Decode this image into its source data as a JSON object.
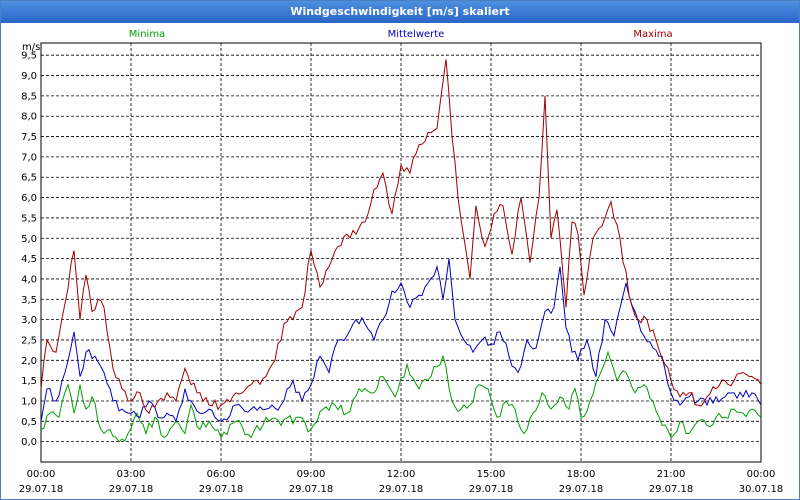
{
  "window": {
    "title": "Windgeschwindigkeit [m/s] skaliert"
  },
  "chart_data": {
    "type": "line",
    "title": "Windgeschwindigkeit [m/s] skaliert",
    "ylabel": "m/s",
    "ylim": [
      -0.5,
      9.8
    ],
    "y_ticks": [
      "0,0",
      "0,5",
      "1,0",
      "1,5",
      "2,0",
      "2,5",
      "3,0",
      "3,5",
      "4,0",
      "4,5",
      "5,0",
      "5,5",
      "6,0",
      "6,5",
      "7,0",
      "7,5",
      "8,0",
      "8,5",
      "9,0",
      "9,5"
    ],
    "x_ticks": [
      {
        "time": "00:00",
        "date": "29.07.18"
      },
      {
        "time": "03:00",
        "date": "29.07.18"
      },
      {
        "time": "06:00",
        "date": "29.07.18"
      },
      {
        "time": "09:00",
        "date": "29.07.18"
      },
      {
        "time": "12:00",
        "date": "29.07.18"
      },
      {
        "time": "15:00",
        "date": "29.07.18"
      },
      {
        "time": "18:00",
        "date": "29.07.18"
      },
      {
        "time": "21:00",
        "date": "29.07.18"
      },
      {
        "time": "00:00",
        "date": "30.07.18"
      }
    ],
    "x_start_hour": 0,
    "x_end_hour": 24,
    "grid": true,
    "series": [
      {
        "name": "Minima",
        "color": "#00a000",
        "keys": [
          [
            0,
            0.3
          ],
          [
            0.3,
            0.7
          ],
          [
            0.6,
            0.6
          ],
          [
            0.9,
            1.4
          ],
          [
            1.1,
            0.7
          ],
          [
            1.3,
            1.4
          ],
          [
            1.5,
            0.8
          ],
          [
            1.7,
            1.1
          ],
          [
            2.0,
            0.3
          ],
          [
            2.3,
            0.3
          ],
          [
            2.6,
            0.0
          ],
          [
            2.9,
            0.2
          ],
          [
            3.2,
            0.7
          ],
          [
            3.5,
            0.2
          ],
          [
            3.8,
            0.6
          ],
          [
            4.1,
            0.1
          ],
          [
            4.5,
            0.5
          ],
          [
            4.8,
            0.2
          ],
          [
            5.0,
            0.9
          ],
          [
            5.3,
            0.3
          ],
          [
            5.6,
            0.5
          ],
          [
            6.0,
            0.1
          ],
          [
            6.5,
            0.5
          ],
          [
            7.0,
            0.1
          ],
          [
            7.5,
            0.6
          ],
          [
            8.0,
            0.4
          ],
          [
            8.5,
            0.6
          ],
          [
            9.0,
            0.3
          ],
          [
            9.4,
            0.8
          ],
          [
            9.8,
            0.9
          ],
          [
            10.2,
            0.7
          ],
          [
            10.6,
            1.3
          ],
          [
            11.0,
            1.2
          ],
          [
            11.4,
            1.6
          ],
          [
            11.8,
            1.1
          ],
          [
            12.2,
            1.9
          ],
          [
            12.6,
            1.3
          ],
          [
            13.0,
            1.6
          ],
          [
            13.4,
            2.1
          ],
          [
            13.7,
            1.0
          ],
          [
            14.0,
            0.8
          ],
          [
            14.3,
            0.9
          ],
          [
            14.6,
            1.4
          ],
          [
            14.9,
            1.3
          ],
          [
            15.2,
            0.6
          ],
          [
            15.5,
            1.0
          ],
          [
            15.8,
            0.8
          ],
          [
            16.1,
            0.2
          ],
          [
            16.4,
            0.7
          ],
          [
            16.7,
            1.2
          ],
          [
            17.0,
            0.8
          ],
          [
            17.3,
            1.1
          ],
          [
            17.6,
            0.8
          ],
          [
            17.8,
            1.3
          ],
          [
            18.0,
            0.6
          ],
          [
            18.3,
            1.0
          ],
          [
            18.6,
            1.6
          ],
          [
            18.9,
            2.2
          ],
          [
            19.2,
            1.5
          ],
          [
            19.5,
            1.7
          ],
          [
            19.8,
            1.2
          ],
          [
            20.1,
            1.4
          ],
          [
            20.4,
            1.0
          ],
          [
            20.7,
            0.4
          ],
          [
            21.0,
            0.1
          ],
          [
            21.3,
            0.5
          ],
          [
            21.6,
            0.2
          ],
          [
            21.9,
            0.5
          ],
          [
            22.2,
            0.4
          ],
          [
            22.5,
            0.6
          ],
          [
            22.8,
            0.6
          ],
          [
            23.1,
            0.8
          ],
          [
            23.4,
            0.7
          ],
          [
            23.7,
            0.8
          ],
          [
            24.0,
            0.6
          ]
        ]
      },
      {
        "name": "Mittelwerte",
        "color": "#0000c0",
        "keys": [
          [
            0,
            0.5
          ],
          [
            0.2,
            1.3
          ],
          [
            0.5,
            1.0
          ],
          [
            0.8,
            1.7
          ],
          [
            1.1,
            2.7
          ],
          [
            1.3,
            1.6
          ],
          [
            1.5,
            2.2
          ],
          [
            1.8,
            2.1
          ],
          [
            2.1,
            1.7
          ],
          [
            2.4,
            1.0
          ],
          [
            2.7,
            0.8
          ],
          [
            3.0,
            0.7
          ],
          [
            3.3,
            0.6
          ],
          [
            3.6,
            1.0
          ],
          [
            3.9,
            0.6
          ],
          [
            4.2,
            0.7
          ],
          [
            4.5,
            0.5
          ],
          [
            4.8,
            1.3
          ],
          [
            5.0,
            1.0
          ],
          [
            5.3,
            0.7
          ],
          [
            5.6,
            0.8
          ],
          [
            6.0,
            0.5
          ],
          [
            6.5,
            0.9
          ],
          [
            7.0,
            0.8
          ],
          [
            7.5,
            0.8
          ],
          [
            8.0,
            0.9
          ],
          [
            8.4,
            1.5
          ],
          [
            8.7,
            1.0
          ],
          [
            9.0,
            1.4
          ],
          [
            9.3,
            2.1
          ],
          [
            9.6,
            1.7
          ],
          [
            9.9,
            2.5
          ],
          [
            10.2,
            2.6
          ],
          [
            10.5,
            3.0
          ],
          [
            10.8,
            2.9
          ],
          [
            11.1,
            2.5
          ],
          [
            11.4,
            3.0
          ],
          [
            11.7,
            3.7
          ],
          [
            12.0,
            3.9
          ],
          [
            12.3,
            3.3
          ],
          [
            12.6,
            3.6
          ],
          [
            12.9,
            3.9
          ],
          [
            13.2,
            4.3
          ],
          [
            13.4,
            3.5
          ],
          [
            13.6,
            4.5
          ],
          [
            13.8,
            3.0
          ],
          [
            14.1,
            2.5
          ],
          [
            14.4,
            2.2
          ],
          [
            14.7,
            2.5
          ],
          [
            15.0,
            2.4
          ],
          [
            15.3,
            2.7
          ],
          [
            15.6,
            2.1
          ],
          [
            15.9,
            1.7
          ],
          [
            16.2,
            2.5
          ],
          [
            16.5,
            2.3
          ],
          [
            16.8,
            3.2
          ],
          [
            17.1,
            3.3
          ],
          [
            17.3,
            4.3
          ],
          [
            17.5,
            2.8
          ],
          [
            17.7,
            2.2
          ],
          [
            17.9,
            2.0
          ],
          [
            18.2,
            2.5
          ],
          [
            18.5,
            1.6
          ],
          [
            18.8,
            3.0
          ],
          [
            19.1,
            2.6
          ],
          [
            19.5,
            3.9
          ],
          [
            19.8,
            3.2
          ],
          [
            20.1,
            2.6
          ],
          [
            20.4,
            2.3
          ],
          [
            20.7,
            2.1
          ],
          [
            21.0,
            1.2
          ],
          [
            21.3,
            0.9
          ],
          [
            21.6,
            1.1
          ],
          [
            21.9,
            1.0
          ],
          [
            22.2,
            0.9
          ],
          [
            22.5,
            1.1
          ],
          [
            22.8,
            1.1
          ],
          [
            23.1,
            1.2
          ],
          [
            23.4,
            1.1
          ],
          [
            23.7,
            1.2
          ],
          [
            24.0,
            0.9
          ]
        ]
      },
      {
        "name": "Maxima",
        "color": "#a00000",
        "keys": [
          [
            0,
            1.3
          ],
          [
            0.2,
            2.5
          ],
          [
            0.5,
            2.2
          ],
          [
            0.8,
            3.4
          ],
          [
            1.1,
            4.7
          ],
          [
            1.3,
            3.0
          ],
          [
            1.5,
            4.1
          ],
          [
            1.7,
            3.2
          ],
          [
            1.9,
            3.5
          ],
          [
            2.1,
            3.3
          ],
          [
            2.4,
            1.8
          ],
          [
            2.7,
            1.3
          ],
          [
            3.0,
            1.0
          ],
          [
            3.3,
            1.2
          ],
          [
            3.6,
            0.7
          ],
          [
            3.9,
            1.0
          ],
          [
            4.2,
            1.2
          ],
          [
            4.5,
            1.0
          ],
          [
            4.8,
            1.8
          ],
          [
            5.0,
            1.4
          ],
          [
            5.3,
            1.2
          ],
          [
            5.6,
            0.9
          ],
          [
            6.0,
            0.9
          ],
          [
            6.5,
            1.2
          ],
          [
            7.0,
            1.4
          ],
          [
            7.5,
            1.6
          ],
          [
            7.8,
            2.0
          ],
          [
            8.1,
            2.9
          ],
          [
            8.4,
            3.0
          ],
          [
            8.7,
            3.3
          ],
          [
            9.0,
            4.7
          ],
          [
            9.3,
            3.8
          ],
          [
            9.6,
            4.3
          ],
          [
            9.9,
            4.8
          ],
          [
            10.2,
            5.1
          ],
          [
            10.5,
            5.1
          ],
          [
            10.8,
            5.4
          ],
          [
            11.1,
            6.2
          ],
          [
            11.4,
            6.6
          ],
          [
            11.7,
            5.6
          ],
          [
            12.0,
            6.8
          ],
          [
            12.3,
            6.6
          ],
          [
            12.6,
            7.3
          ],
          [
            12.9,
            7.6
          ],
          [
            13.2,
            7.7
          ],
          [
            13.5,
            9.4
          ],
          [
            13.7,
            7.5
          ],
          [
            13.9,
            6.0
          ],
          [
            14.1,
            5.0
          ],
          [
            14.3,
            4.0
          ],
          [
            14.5,
            5.8
          ],
          [
            14.8,
            4.8
          ],
          [
            15.1,
            5.6
          ],
          [
            15.4,
            5.8
          ],
          [
            15.7,
            4.6
          ],
          [
            16.0,
            6.0
          ],
          [
            16.3,
            4.4
          ],
          [
            16.6,
            6.0
          ],
          [
            16.8,
            8.5
          ],
          [
            17.0,
            5.0
          ],
          [
            17.2,
            5.7
          ],
          [
            17.5,
            3.3
          ],
          [
            17.7,
            5.4
          ],
          [
            17.9,
            5.1
          ],
          [
            18.1,
            3.6
          ],
          [
            18.4,
            5.0
          ],
          [
            18.7,
            5.3
          ],
          [
            19.0,
            5.9
          ],
          [
            19.3,
            5.0
          ],
          [
            19.6,
            3.6
          ],
          [
            19.9,
            3.0
          ],
          [
            20.2,
            3.0
          ],
          [
            20.5,
            2.5
          ],
          [
            20.8,
            1.9
          ],
          [
            21.0,
            1.5
          ],
          [
            21.3,
            1.1
          ],
          [
            21.6,
            1.2
          ],
          [
            21.9,
            0.9
          ],
          [
            22.2,
            1.1
          ],
          [
            22.5,
            1.3
          ],
          [
            22.8,
            1.5
          ],
          [
            23.1,
            1.5
          ],
          [
            23.4,
            1.7
          ],
          [
            23.7,
            1.6
          ],
          [
            24.0,
            1.4
          ]
        ]
      }
    ]
  }
}
